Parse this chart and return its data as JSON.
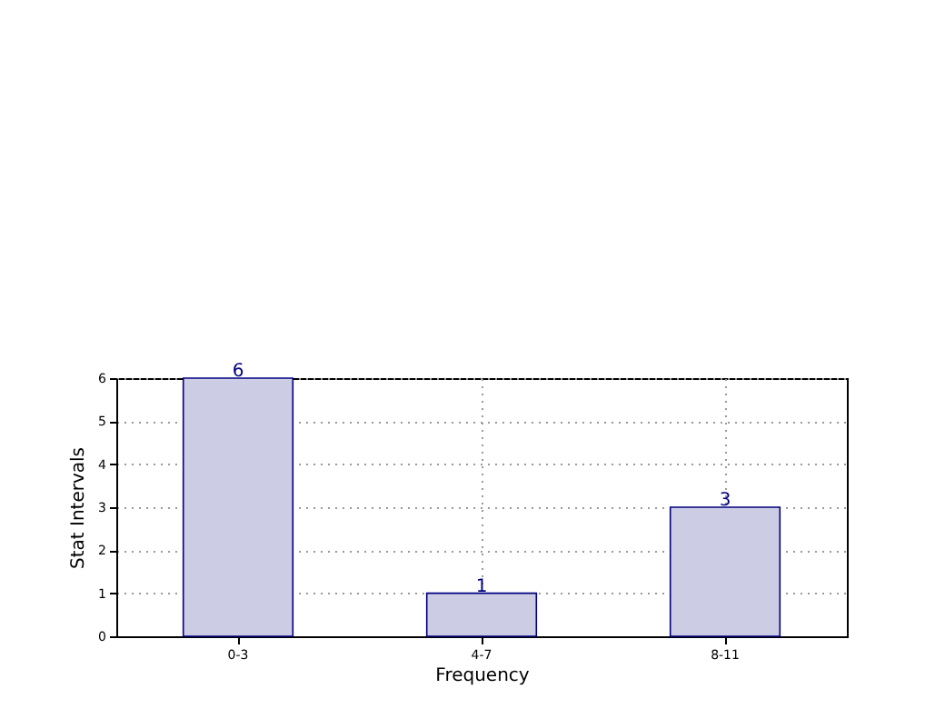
{
  "chart_data": {
    "type": "bar",
    "xlabel": "Frequency",
    "ylabel": "Stat Intervals",
    "categories": [
      "0-3",
      "4-7",
      "8-11"
    ],
    "values": [
      6,
      1,
      3
    ],
    "color": "#cccce5",
    "ylim": [
      0,
      6
    ],
    "yticks": [
      0,
      1,
      2,
      3,
      4,
      5,
      6
    ],
    "grid": true,
    "data_labels": true
  }
}
